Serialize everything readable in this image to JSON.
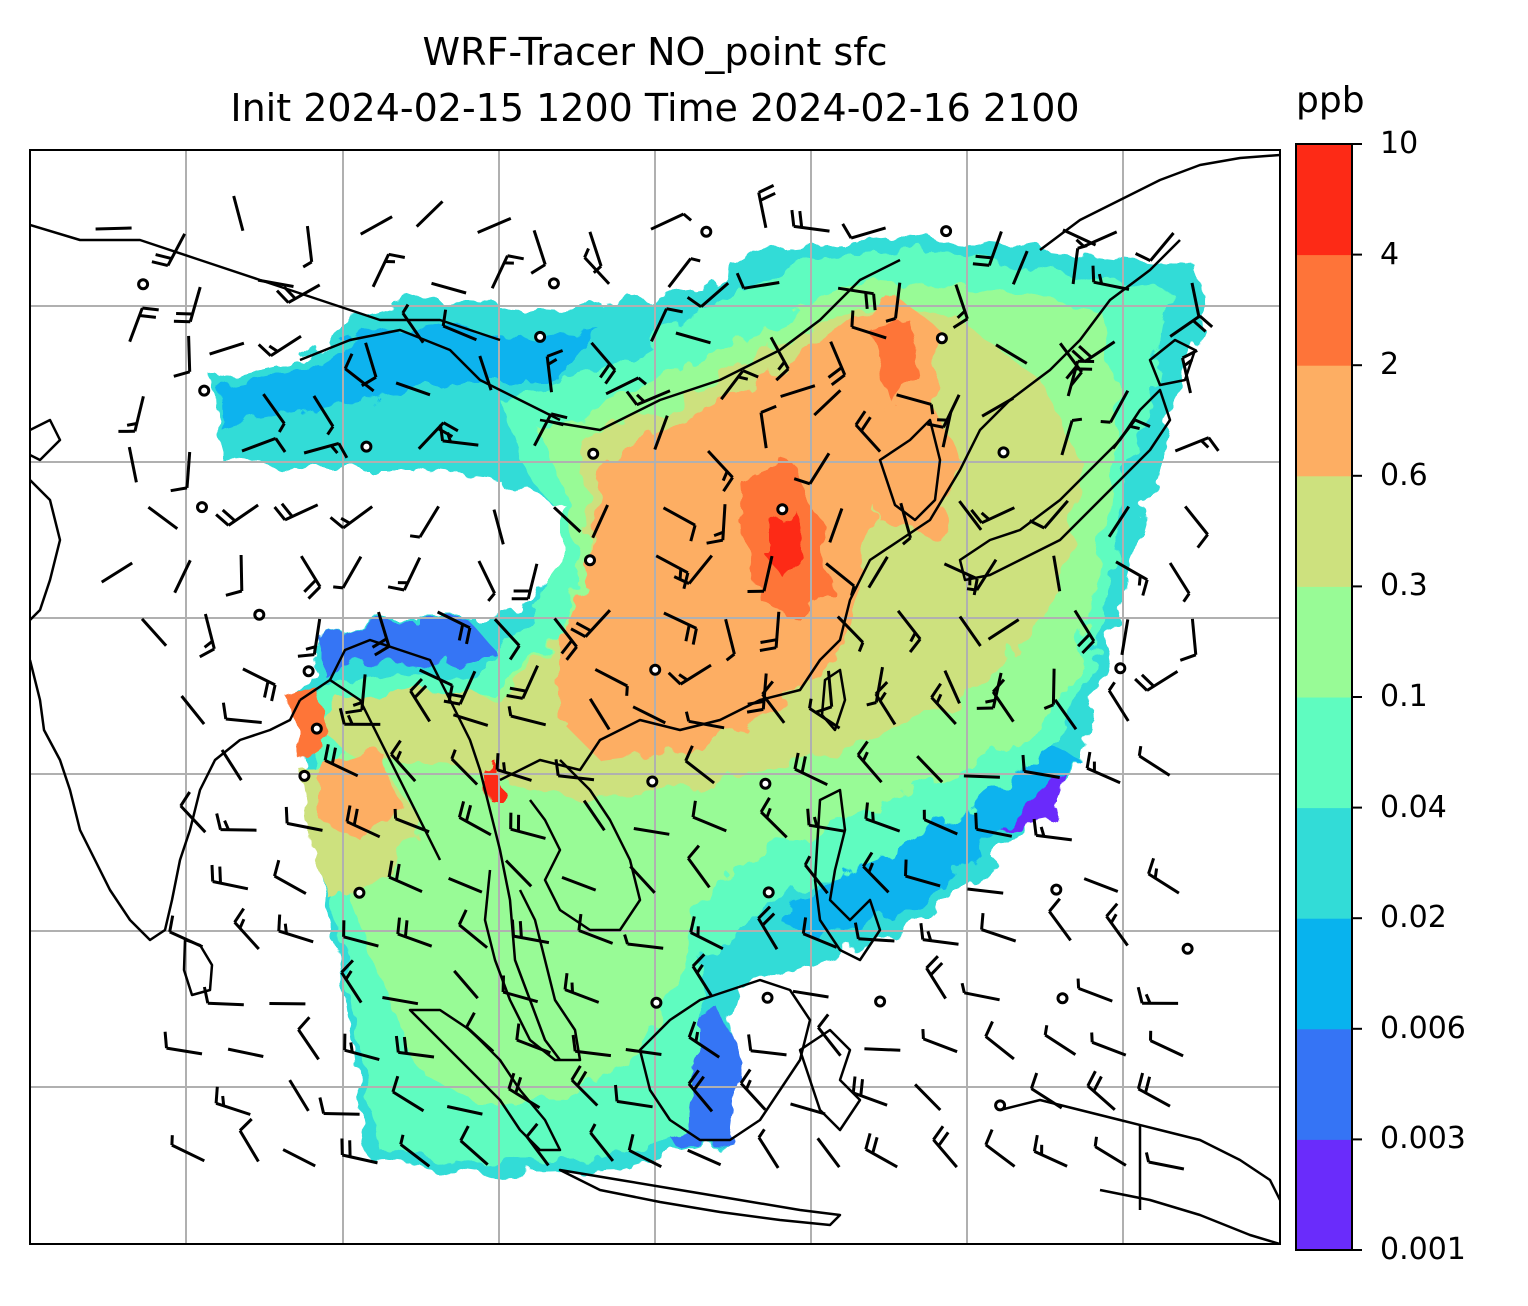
{
  "figure": {
    "title_line1": "WRF-Tracer NO_point sfc",
    "title_line2": "Init 2024-02-15 1200 Time 2024-02-16 2100"
  },
  "colorbar": {
    "units": "ppb",
    "levels": [
      "0.001",
      "0.003",
      "0.006",
      "0.02",
      "0.04",
      "0.1",
      "0.3",
      "0.6",
      "2",
      "4",
      "10"
    ],
    "colors": [
      "#6a2cfb",
      "#3574f5",
      "#08b3ee",
      "#32dcd7",
      "#5ffcc0",
      "#98fb96",
      "#cde17e",
      "#fdae63",
      "#fe7439",
      "#fd2a16"
    ]
  },
  "map": {
    "region": "South / Southeast / East Asia",
    "gridlines": true,
    "coastline_color": "#000000",
    "gridline_color": "#b0b0b0"
  },
  "overlays": {
    "wind_barbs": true,
    "calm_wind_circles": true
  }
}
